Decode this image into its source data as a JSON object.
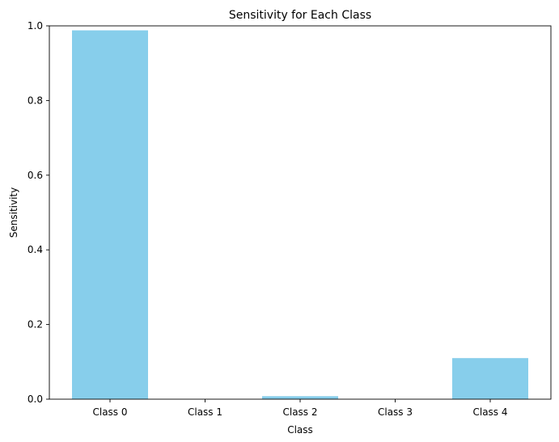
{
  "chart_data": {
    "type": "bar",
    "title": "Sensitivity for Each Class",
    "xlabel": "Class",
    "ylabel": "Sensitivity",
    "categories": [
      "Class 0",
      "Class 1",
      "Class 2",
      "Class 3",
      "Class 4"
    ],
    "values": [
      0.988,
      0.0,
      0.008,
      0.0,
      0.11
    ],
    "ylim": [
      0,
      1.0
    ],
    "yticks": [
      "0.0",
      "0.2",
      "0.4",
      "0.6",
      "0.8",
      "1.0"
    ],
    "grid": false,
    "bar_color": "#87CEEB"
  }
}
